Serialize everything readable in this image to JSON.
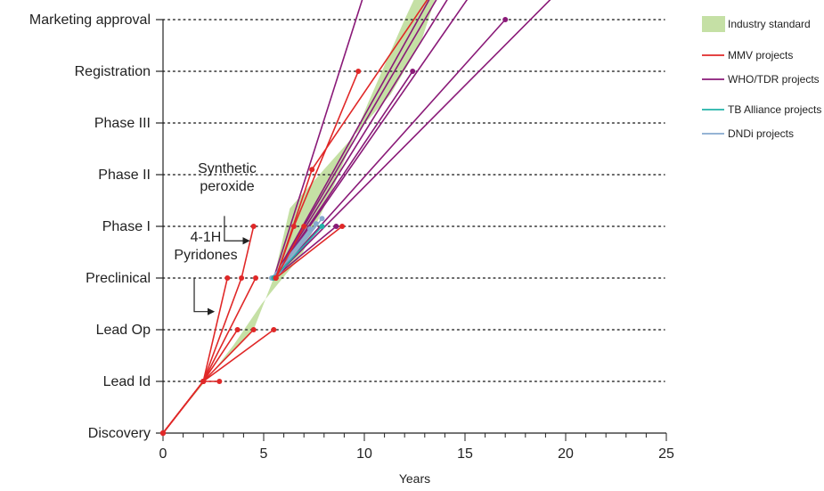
{
  "chart_data": {
    "type": "line",
    "xlabel": "Years",
    "xlim": [
      0,
      25
    ],
    "x_ticks": [
      "0",
      "5",
      "10",
      "15",
      "20",
      "25"
    ],
    "stages": [
      "Discovery",
      "Lead Id",
      "Lead Op",
      "Preclinical",
      "Phase I",
      "Phase II",
      "Phase III",
      "Registration",
      "Marketing approval"
    ],
    "grid": "horizontal dotted",
    "legend_position": "right",
    "colors": {
      "industry": "#c5e0a5",
      "mmv": "#e02828",
      "who": "#8a1a78",
      "tba": "#23b2a8",
      "dndi": "#86a9cf"
    },
    "legend": [
      {
        "key": "industry",
        "label": "Industry standard",
        "kind": "patch"
      },
      {
        "key": "mmv",
        "label": "MMV projects",
        "kind": "line"
      },
      {
        "key": "who",
        "label": "WHO/TDR projects",
        "kind": "line"
      },
      {
        "key": "tba",
        "label": "TB Alliance projects",
        "kind": "line"
      },
      {
        "key": "dndi",
        "label": "DNDi projects",
        "kind": "line"
      }
    ],
    "industry_band": [
      [
        0,
        0
      ],
      [
        2.0,
        1
      ],
      [
        4.5,
        2
      ],
      [
        5.5,
        3
      ],
      [
        6.3,
        4.35
      ],
      [
        7.2,
        4.75
      ],
      [
        11.3,
        6.55
      ],
      [
        12.8,
        7.55
      ],
      [
        13.6,
        8.5
      ],
      [
        14.3,
        9.0
      ],
      [
        13.2,
        9.0
      ],
      [
        12.0,
        8.0
      ],
      [
        10.2,
        6.4
      ],
      [
        8.4,
        4.7
      ],
      [
        6.9,
        3.45
      ],
      [
        4.9,
        2.5
      ],
      [
        3.5,
        1.7
      ],
      [
        2.1,
        1
      ]
    ],
    "series": [
      {
        "group": "who",
        "paths": [
          [
            [
              5.5,
              3
            ],
            [
              10.4,
              9
            ]
          ],
          [
            [
              5.5,
              3
            ],
            [
              14.1,
              9
            ]
          ],
          [
            [
              5.5,
              3
            ],
            [
              14.5,
              9
            ]
          ],
          [
            [
              5.5,
              3
            ],
            [
              15.1,
              9
            ]
          ],
          [
            [
              5.5,
              3
            ],
            [
              16.2,
              9
            ]
          ],
          [
            [
              5.5,
              3
            ],
            [
              20.8,
              9
            ]
          ],
          [
            [
              5.5,
              3
            ],
            [
              17.0,
              8
            ]
          ],
          [
            [
              5.5,
              3
            ],
            [
              12.4,
              7
            ]
          ],
          [
            [
              5.5,
              3
            ],
            [
              8.6,
              4
            ]
          ]
        ]
      },
      {
        "group": "dndi",
        "paths": [
          [
            [
              5.4,
              3
            ],
            [
              7.3,
              3.95
            ]
          ],
          [
            [
              5.5,
              3
            ],
            [
              7.6,
              4.05
            ]
          ],
          [
            [
              5.6,
              3
            ],
            [
              7.9,
              4.15
            ]
          ]
        ]
      },
      {
        "group": "tba",
        "paths": [
          [
            [
              5.5,
              3
            ],
            [
              7.9,
              4
            ]
          ]
        ]
      },
      {
        "group": "mmv",
        "paths": [
          [
            [
              0,
              0
            ],
            [
              2.0,
              1
            ],
            [
              2.8,
              1
            ]
          ],
          [
            [
              0,
              0
            ],
            [
              2.0,
              1
            ],
            [
              3.7,
              2
            ]
          ],
          [
            [
              0,
              0
            ],
            [
              2.0,
              1
            ],
            [
              4.5,
              2
            ]
          ],
          [
            [
              0,
              0
            ],
            [
              2.0,
              1
            ],
            [
              5.5,
              2
            ]
          ],
          [
            [
              0,
              0
            ],
            [
              2.0,
              1
            ],
            [
              3.2,
              3
            ]
          ],
          [
            [
              0,
              0
            ],
            [
              2.0,
              1
            ],
            [
              4.6,
              3
            ]
          ],
          [
            [
              0,
              0
            ],
            [
              2.0,
              1
            ],
            [
              3.9,
              3
            ],
            [
              4.5,
              4
            ]
          ],
          [
            [
              5.6,
              3
            ],
            [
              6.5,
              4
            ],
            [
              9.7,
              7
            ]
          ],
          [
            [
              5.6,
              3
            ],
            [
              7.0,
              4
            ]
          ],
          [
            [
              5.6,
              3
            ],
            [
              8.9,
              4
            ]
          ],
          [
            [
              5.6,
              3
            ],
            [
              7.4,
              5.1
            ],
            [
              14.2,
              9
            ]
          ]
        ]
      }
    ],
    "annotations": [
      {
        "lines": [
          "Synthetic",
          "peroxide"
        ],
        "arrow_from": [
          3.05,
          4.2
        ],
        "arrow_to": [
          4.25,
          3.72
        ]
      },
      {
        "lines": [
          "4-1H",
          "Pyridones"
        ],
        "arrow_from": [
          1.55,
          3.0
        ],
        "arrow_to": [
          2.5,
          2.35
        ]
      }
    ]
  }
}
